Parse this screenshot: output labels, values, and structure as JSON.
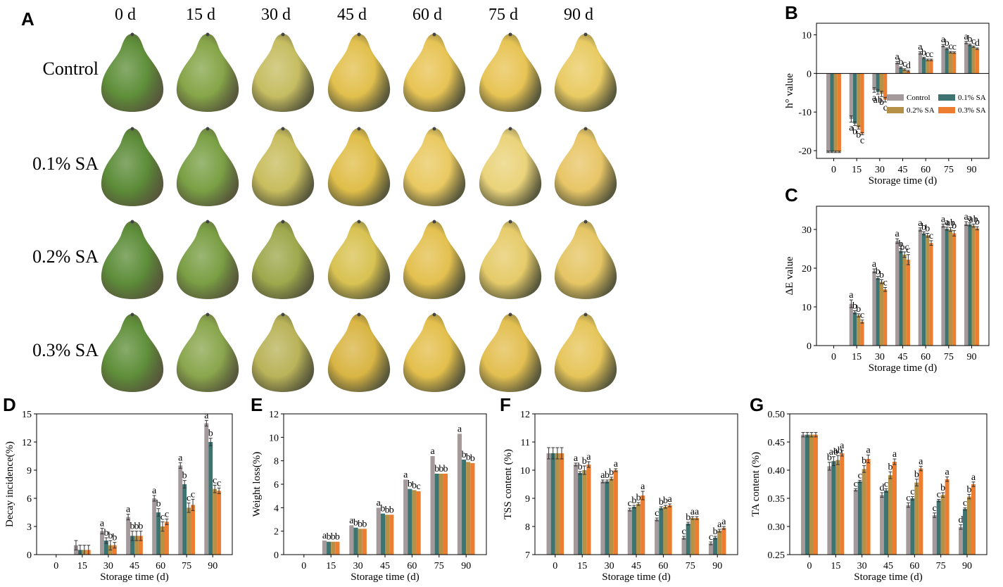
{
  "panel_a": {
    "letter": "A",
    "days": [
      "0 d",
      "15 d",
      "30 d",
      "45 d",
      "60 d",
      "75 d",
      "90 d"
    ],
    "treatments": [
      "Control",
      "0.1% SA",
      "0.2% SA",
      "0.3% SA"
    ],
    "fruit_colors": [
      [
        "#5f8f3a",
        "#86a548",
        "#c6bd62",
        "#e2c04e",
        "#e8c455",
        "#e8c455",
        "#e9cb63"
      ],
      [
        "#5c8c38",
        "#7aa045",
        "#c8bd5e",
        "#e0be4a",
        "#e9c961",
        "#ead37a",
        "#e8c667"
      ],
      [
        "#5d8d39",
        "#7a9e44",
        "#9ea84c",
        "#d8c252",
        "#e3c04f",
        "#e6cb6a",
        "#e5c564"
      ],
      [
        "#5f8f3a",
        "#8aa64d",
        "#b9b359",
        "#d9b544",
        "#e3bf4c",
        "#e3bf51",
        "#e6c55a"
      ]
    ]
  },
  "colors": {
    "control": "#a49a9c",
    "sa01": "#3d7370",
    "sa02": "#b59148",
    "sa03": "#ed7d31"
  },
  "chart_data": [
    {
      "id": "B",
      "type": "bar",
      "title": "",
      "categories": [
        "0",
        "15",
        "30",
        "45",
        "60",
        "75",
        "90"
      ],
      "xlabel": "Storage time (d)",
      "ylabel": "h° value",
      "ylim": [
        -22,
        13
      ],
      "yticks": [
        -20,
        -10,
        0,
        10
      ],
      "legend": {
        "placement": "center-right",
        "entries": [
          "Control",
          "0.1% SA",
          "0.2% SA",
          "0.3% SA"
        ]
      },
      "series": [
        {
          "name": "Control",
          "values": [
            -20.3,
            -11.8,
            -4.3,
            2.8,
            5.3,
            7.2,
            8.0
          ],
          "errors": [
            0.2,
            0.8,
            0.6,
            0.3,
            0.3,
            0.3,
            0.3
          ],
          "letters": [
            "",
            "a",
            "a",
            "a",
            "a",
            "a",
            "a"
          ]
        },
        {
          "name": "0.1% SA",
          "values": [
            -20.3,
            -13.0,
            -4.8,
            1.5,
            4.0,
            6.4,
            7.4
          ],
          "errors": [
            0.2,
            0.5,
            0.6,
            0.2,
            0.2,
            0.2,
            0.2
          ],
          "letters": [
            "",
            "b",
            "ab",
            "b",
            "b",
            "b",
            "b"
          ]
        },
        {
          "name": "0.2% SA",
          "values": [
            -20.3,
            -14.0,
            -5.3,
            1.0,
            3.5,
            5.5,
            6.9
          ],
          "errors": [
            0.2,
            0.4,
            0.7,
            0.2,
            0.2,
            0.2,
            0.2
          ],
          "letters": [
            "",
            "b",
            "b",
            "c",
            "c",
            "c",
            "c"
          ]
        },
        {
          "name": "0.3% SA",
          "values": [
            -20.3,
            -15.6,
            -6.8,
            0.6,
            3.5,
            5.4,
            6.4
          ],
          "errors": [
            0.2,
            0.3,
            0.6,
            0.2,
            0.2,
            0.2,
            0.2
          ],
          "letters": [
            "",
            "c",
            "c",
            "d",
            "c",
            "c",
            "d"
          ]
        }
      ]
    },
    {
      "id": "C",
      "type": "bar",
      "title": "",
      "categories": [
        "0",
        "15",
        "30",
        "45",
        "60",
        "75",
        "90"
      ],
      "xlabel": "Storage time (d)",
      "ylabel": "ΔE value",
      "ylim": [
        0,
        36
      ],
      "yticks": [
        0,
        10,
        20,
        30
      ],
      "series": [
        {
          "name": "Control",
          "values": [
            0,
            10.8,
            19.3,
            27.0,
            30.0,
            31.0,
            31.5
          ],
          "errors": [
            0,
            1.0,
            0.5,
            0.6,
            0.4,
            0.4,
            0.5
          ],
          "letters": [
            "",
            "a",
            "a",
            "a",
            "a",
            "a",
            "a"
          ]
        },
        {
          "name": "0.1% SA",
          "values": [
            0,
            8.6,
            17.5,
            24.5,
            29.0,
            30.2,
            31.3
          ],
          "errors": [
            0,
            0.4,
            0.4,
            0.5,
            0.4,
            0.4,
            0.4
          ],
          "letters": [
            "",
            "b",
            "b",
            "b",
            "b",
            "a",
            "a"
          ]
        },
        {
          "name": "0.2% SA",
          "values": [
            0,
            7.8,
            16.5,
            23.5,
            28.5,
            30.0,
            31.0
          ],
          "errors": [
            0,
            0.4,
            0.5,
            0.7,
            0.5,
            0.5,
            0.4
          ],
          "letters": [
            "",
            "b",
            "b",
            "bc",
            "b",
            "ab",
            "ab"
          ]
        },
        {
          "name": "0.3% SA",
          "values": [
            0,
            6.2,
            14.5,
            22.2,
            26.5,
            29.0,
            30.3
          ],
          "errors": [
            0,
            0.4,
            0.5,
            1.3,
            0.6,
            0.7,
            0.4
          ],
          "letters": [
            "",
            "c",
            "c",
            "c",
            "c",
            "b",
            "b"
          ]
        }
      ]
    },
    {
      "id": "D",
      "type": "bar",
      "title": "",
      "categories": [
        "0",
        "15",
        "30",
        "45",
        "60",
        "75",
        "90"
      ],
      "xlabel": "Storage time (d)",
      "ylabel": "Decay incidence(%)",
      "ylim": [
        0,
        15
      ],
      "yticks": [
        0,
        3,
        6,
        9,
        12,
        15
      ],
      "series": [
        {
          "name": "Control",
          "values": [
            0,
            1.0,
            2.5,
            4.0,
            6.0,
            9.5,
            14.0
          ],
          "errors": [
            0,
            0.5,
            0.3,
            0.3,
            0.3,
            0.3,
            0.3
          ],
          "letters": [
            "",
            "",
            "a",
            "a",
            "a",
            "a",
            "a"
          ]
        },
        {
          "name": "0.1% SA",
          "values": [
            0,
            0.5,
            1.5,
            2.0,
            4.5,
            7.5,
            12.0
          ],
          "errors": [
            0,
            0.5,
            0.3,
            0.5,
            0.4,
            0.4,
            0.4
          ],
          "letters": [
            "",
            "",
            "b",
            "b",
            "b",
            "b",
            "b"
          ]
        },
        {
          "name": "0.2% SA",
          "values": [
            0,
            0.5,
            1.0,
            2.0,
            3.0,
            5.0,
            7.0
          ],
          "errors": [
            0,
            0.5,
            0.5,
            0.5,
            0.5,
            0.5,
            0.4
          ],
          "letters": [
            "",
            "",
            "b",
            "b",
            "c",
            "c",
            "c"
          ]
        },
        {
          "name": "0.3% SA",
          "values": [
            0,
            0.5,
            1.0,
            2.0,
            3.5,
            5.3,
            6.8
          ],
          "errors": [
            0,
            0.5,
            0.3,
            0.5,
            0.3,
            0.6,
            0.3
          ],
          "letters": [
            "",
            "",
            "b",
            "b",
            "c",
            "c",
            "c"
          ]
        }
      ]
    },
    {
      "id": "E",
      "type": "bar",
      "title": "",
      "categories": [
        "0",
        "15",
        "30",
        "45",
        "60",
        "75",
        "90"
      ],
      "xlabel": "Storage time (d)",
      "ylabel": "Weight loss(%)",
      "ylim": [
        0,
        12
      ],
      "yticks": [
        0,
        2,
        4,
        6,
        8,
        10,
        12
      ],
      "series": [
        {
          "name": "Control",
          "values": [
            0,
            1.2,
            2.5,
            4.0,
            6.4,
            8.4,
            10.3
          ],
          "errors": [
            0,
            0,
            0,
            0,
            0,
            0,
            0
          ],
          "letters": [
            "",
            "a",
            "a",
            "a",
            "a",
            "a",
            "a"
          ]
        },
        {
          "name": "0.1% SA",
          "values": [
            0,
            1.1,
            2.3,
            3.5,
            5.6,
            6.9,
            8.1
          ],
          "errors": [
            0,
            0,
            0,
            0,
            0,
            0,
            0
          ],
          "letters": [
            "",
            "b",
            "b",
            "b",
            "b",
            "b",
            "b"
          ]
        },
        {
          "name": "0.2% SA",
          "values": [
            0,
            1.1,
            2.2,
            3.4,
            5.5,
            6.9,
            7.9
          ],
          "errors": [
            0,
            0,
            0,
            0,
            0,
            0,
            0
          ],
          "letters": [
            "",
            "b",
            "b",
            "b",
            "b",
            "b",
            "b"
          ]
        },
        {
          "name": "0.3% SA",
          "values": [
            0,
            1.1,
            2.2,
            3.4,
            5.4,
            6.9,
            7.8
          ],
          "errors": [
            0,
            0,
            0,
            0,
            0,
            0,
            0
          ],
          "letters": [
            "",
            "b",
            "b",
            "b",
            "c",
            "b",
            "b"
          ]
        }
      ]
    },
    {
      "id": "F",
      "type": "bar",
      "title": "",
      "categories": [
        "0",
        "15",
        "30",
        "45",
        "60",
        "75",
        "90"
      ],
      "xlabel": "Storage time (d)",
      "ylabel": "TSS content (%)",
      "ylim": [
        7,
        12
      ],
      "yticks": [
        7,
        8,
        9,
        10,
        11,
        12
      ],
      "series": [
        {
          "name": "Control",
          "values": [
            10.6,
            10.2,
            9.6,
            8.6,
            8.25,
            7.6,
            7.4
          ],
          "errors": [
            0.2,
            0.05,
            0.05,
            0.05,
            0.05,
            0.05,
            0.05
          ],
          "letters": [
            "",
            "a",
            "a",
            "c",
            "c",
            "c",
            "c"
          ]
        },
        {
          "name": "0.1% SA",
          "values": [
            10.6,
            9.9,
            9.6,
            8.7,
            8.65,
            8.1,
            7.6
          ],
          "errors": [
            0.2,
            0.05,
            0.05,
            0.05,
            0.05,
            0.05,
            0.05
          ],
          "letters": [
            "",
            "b",
            "b",
            "b",
            "b",
            "b",
            "b"
          ]
        },
        {
          "name": "0.2% SA",
          "values": [
            10.6,
            10.0,
            9.7,
            8.8,
            8.7,
            8.3,
            7.85
          ],
          "errors": [
            0.2,
            0.15,
            0.05,
            0.05,
            0.05,
            0.05,
            0.05
          ],
          "letters": [
            "",
            "b",
            "b",
            "b",
            "b",
            "a",
            "a"
          ]
        },
        {
          "name": "0.3% SA",
          "values": [
            10.6,
            10.2,
            10.0,
            9.1,
            8.75,
            8.3,
            7.95
          ],
          "errors": [
            0.2,
            0.1,
            0.05,
            0.15,
            0.05,
            0.05,
            0.05
          ],
          "letters": [
            "",
            "a",
            "a",
            "a",
            "a",
            "a",
            "a"
          ]
        }
      ]
    },
    {
      "id": "G",
      "type": "bar",
      "title": "",
      "categories": [
        "0",
        "15",
        "30",
        "45",
        "60",
        "75",
        "90"
      ],
      "xlabel": "Storage time (d)",
      "ylabel": "TA content (%)",
      "ylim": [
        0.25,
        0.5
      ],
      "yticks": [
        0.25,
        0.3,
        0.35,
        0.4,
        0.45,
        0.5
      ],
      "series": [
        {
          "name": "Control",
          "values": [
            0.463,
            0.407,
            0.365,
            0.356,
            0.338,
            0.32,
            0.299
          ],
          "errors": [
            0.004,
            0.007,
            0.002,
            0.004,
            0.004,
            0.004,
            0.004
          ],
          "letters": [
            "",
            "b",
            "c",
            "d",
            "c",
            "c",
            "d"
          ]
        },
        {
          "name": "0.1% SA",
          "values": [
            0.463,
            0.416,
            0.38,
            0.364,
            0.35,
            0.346,
            0.331
          ],
          "errors": [
            0.004,
            0.008,
            0.002,
            0.003,
            0.003,
            0.002,
            0.002
          ],
          "letters": [
            "",
            "ab",
            "c",
            "c",
            "c",
            "c",
            "c"
          ]
        },
        {
          "name": "0.2% SA",
          "values": [
            0.463,
            0.418,
            0.402,
            0.391,
            0.378,
            0.356,
            0.353
          ],
          "errors": [
            0.004,
            0.008,
            0.006,
            0.006,
            0.006,
            0.004,
            0.004
          ],
          "letters": [
            "",
            "ab",
            "b",
            "b",
            "b",
            "b",
            "b"
          ]
        },
        {
          "name": "0.3% SA",
          "values": [
            0.463,
            0.43,
            0.42,
            0.415,
            0.403,
            0.384,
            0.375
          ],
          "errors": [
            0.004,
            0.005,
            0.007,
            0.005,
            0.004,
            0.004,
            0.004
          ],
          "letters": [
            "",
            "a",
            "a",
            "a",
            "a",
            "a",
            "a"
          ]
        }
      ]
    }
  ]
}
